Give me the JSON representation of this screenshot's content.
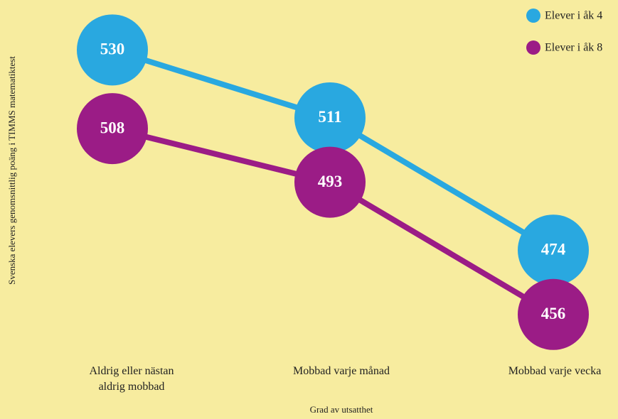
{
  "chart_data": {
    "type": "line",
    "categories": [
      "Aldrig eller nästan aldrig mobbad",
      "Mobbad varje månad",
      "Mobbad varje vecka"
    ],
    "series": [
      {
        "name": "Elever i åk 4",
        "color": "#29a8e0",
        "values": [
          530,
          511,
          474
        ]
      },
      {
        "name": "Elever i åk 8",
        "color": "#9b1c86",
        "values": [
          508,
          493,
          456
        ]
      }
    ],
    "ylim": [
      450,
      540
    ],
    "y_label": "Svenska elevers genomsnittlig poäng i TIMMS matematiktest",
    "x_label": "Grad av utsatthet",
    "legend": "top-right"
  }
}
